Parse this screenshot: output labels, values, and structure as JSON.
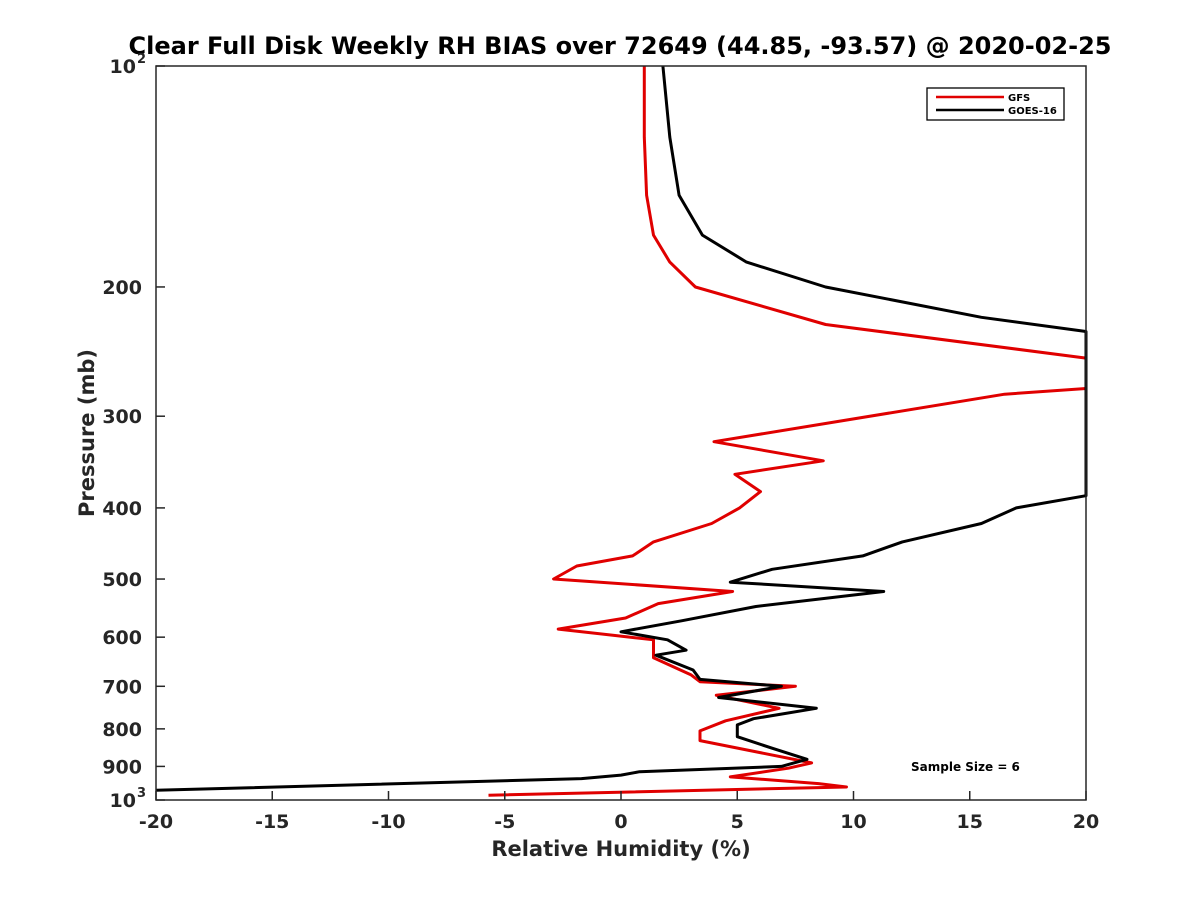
{
  "chart_data": {
    "type": "line",
    "title": "Clear Full Disk Weekly RH BIAS over 72649 (44.85, -93.57) @ 2020-02-25",
    "xlabel": "Relative Humidity (%)",
    "ylabel": "Pressure (mb)",
    "xlim": [
      -20,
      20
    ],
    "ylim": [
      100,
      1000
    ],
    "y_scale": "log",
    "y_reversed": true,
    "grid": false,
    "legend": "top-right",
    "annotation": "Sample Size = 6",
    "x_ticks": [
      {
        "value": -20,
        "label": "-20"
      },
      {
        "value": -15,
        "label": "-15"
      },
      {
        "value": -10,
        "label": "-10"
      },
      {
        "value": -5,
        "label": "-5"
      },
      {
        "value": 0,
        "label": "0"
      },
      {
        "value": 5,
        "label": "5"
      },
      {
        "value": 10,
        "label": "10"
      },
      {
        "value": 15,
        "label": "15"
      },
      {
        "value": 20,
        "label": "20"
      }
    ],
    "y_ticks": [
      {
        "value": 100,
        "base": "10",
        "exp": "2"
      },
      {
        "value": 200,
        "base": "200",
        "exp": ""
      },
      {
        "value": 300,
        "base": "300",
        "exp": ""
      },
      {
        "value": 400,
        "base": "400",
        "exp": ""
      },
      {
        "value": 500,
        "base": "500",
        "exp": ""
      },
      {
        "value": 600,
        "base": "600",
        "exp": ""
      },
      {
        "value": 700,
        "base": "700",
        "exp": ""
      },
      {
        "value": 800,
        "base": "800",
        "exp": ""
      },
      {
        "value": 900,
        "base": "900",
        "exp": ""
      },
      {
        "value": 1000,
        "base": "10",
        "exp": "3"
      }
    ],
    "series": [
      {
        "name": "GFS",
        "color": "#e00000",
        "points": [
          [
            1.0,
            100
          ],
          [
            1.0,
            125
          ],
          [
            1.1,
            150
          ],
          [
            1.4,
            170
          ],
          [
            2.1,
            185
          ],
          [
            3.2,
            200
          ],
          [
            8.8,
            225
          ],
          [
            20.0,
            250
          ],
          [
            20.0,
            275
          ],
          [
            16.5,
            280
          ],
          [
            4.0,
            325
          ],
          [
            8.7,
            345
          ],
          [
            4.9,
            360
          ],
          [
            6.0,
            380
          ],
          [
            5.1,
            400
          ],
          [
            3.9,
            420
          ],
          [
            1.4,
            445
          ],
          [
            0.5,
            465
          ],
          [
            -1.9,
            480
          ],
          [
            -2.9,
            500
          ],
          [
            4.8,
            520
          ],
          [
            1.6,
            540
          ],
          [
            0.2,
            565
          ],
          [
            -2.7,
            585
          ],
          [
            1.4,
            605
          ],
          [
            1.4,
            640
          ],
          [
            3.0,
            675
          ],
          [
            3.4,
            690
          ],
          [
            7.5,
            700
          ],
          [
            4.1,
            720
          ],
          [
            6.8,
            750
          ],
          [
            4.5,
            780
          ],
          [
            3.4,
            805
          ],
          [
            3.4,
            830
          ],
          [
            8.2,
            890
          ],
          [
            7.2,
            905
          ],
          [
            4.7,
            930
          ],
          [
            8.5,
            950
          ],
          [
            9.7,
            960
          ],
          [
            -5.7,
            985
          ]
        ]
      },
      {
        "name": "GOES-16",
        "color": "#000000",
        "points": [
          [
            1.8,
            100
          ],
          [
            2.1,
            125
          ],
          [
            2.5,
            150
          ],
          [
            3.5,
            170
          ],
          [
            5.4,
            185
          ],
          [
            8.8,
            200
          ],
          [
            15.5,
            220
          ],
          [
            20.0,
            230
          ],
          [
            20.0,
            385
          ],
          [
            17.0,
            400
          ],
          [
            15.5,
            420
          ],
          [
            12.1,
            445
          ],
          [
            10.4,
            465
          ],
          [
            6.5,
            485
          ],
          [
            4.7,
            505
          ],
          [
            11.3,
            520
          ],
          [
            5.8,
            545
          ],
          [
            2.6,
            570
          ],
          [
            0.0,
            590
          ],
          [
            2.0,
            605
          ],
          [
            2.8,
            625
          ],
          [
            1.5,
            635
          ],
          [
            3.1,
            665
          ],
          [
            3.4,
            685
          ],
          [
            6.9,
            700
          ],
          [
            4.2,
            725
          ],
          [
            8.4,
            750
          ],
          [
            5.7,
            775
          ],
          [
            5.0,
            790
          ],
          [
            5.0,
            820
          ],
          [
            6.5,
            850
          ],
          [
            8.0,
            880
          ],
          [
            6.9,
            900
          ],
          [
            0.8,
            915
          ],
          [
            0.0,
            925
          ],
          [
            -1.7,
            935
          ],
          [
            -20.0,
            970
          ]
        ]
      }
    ]
  }
}
